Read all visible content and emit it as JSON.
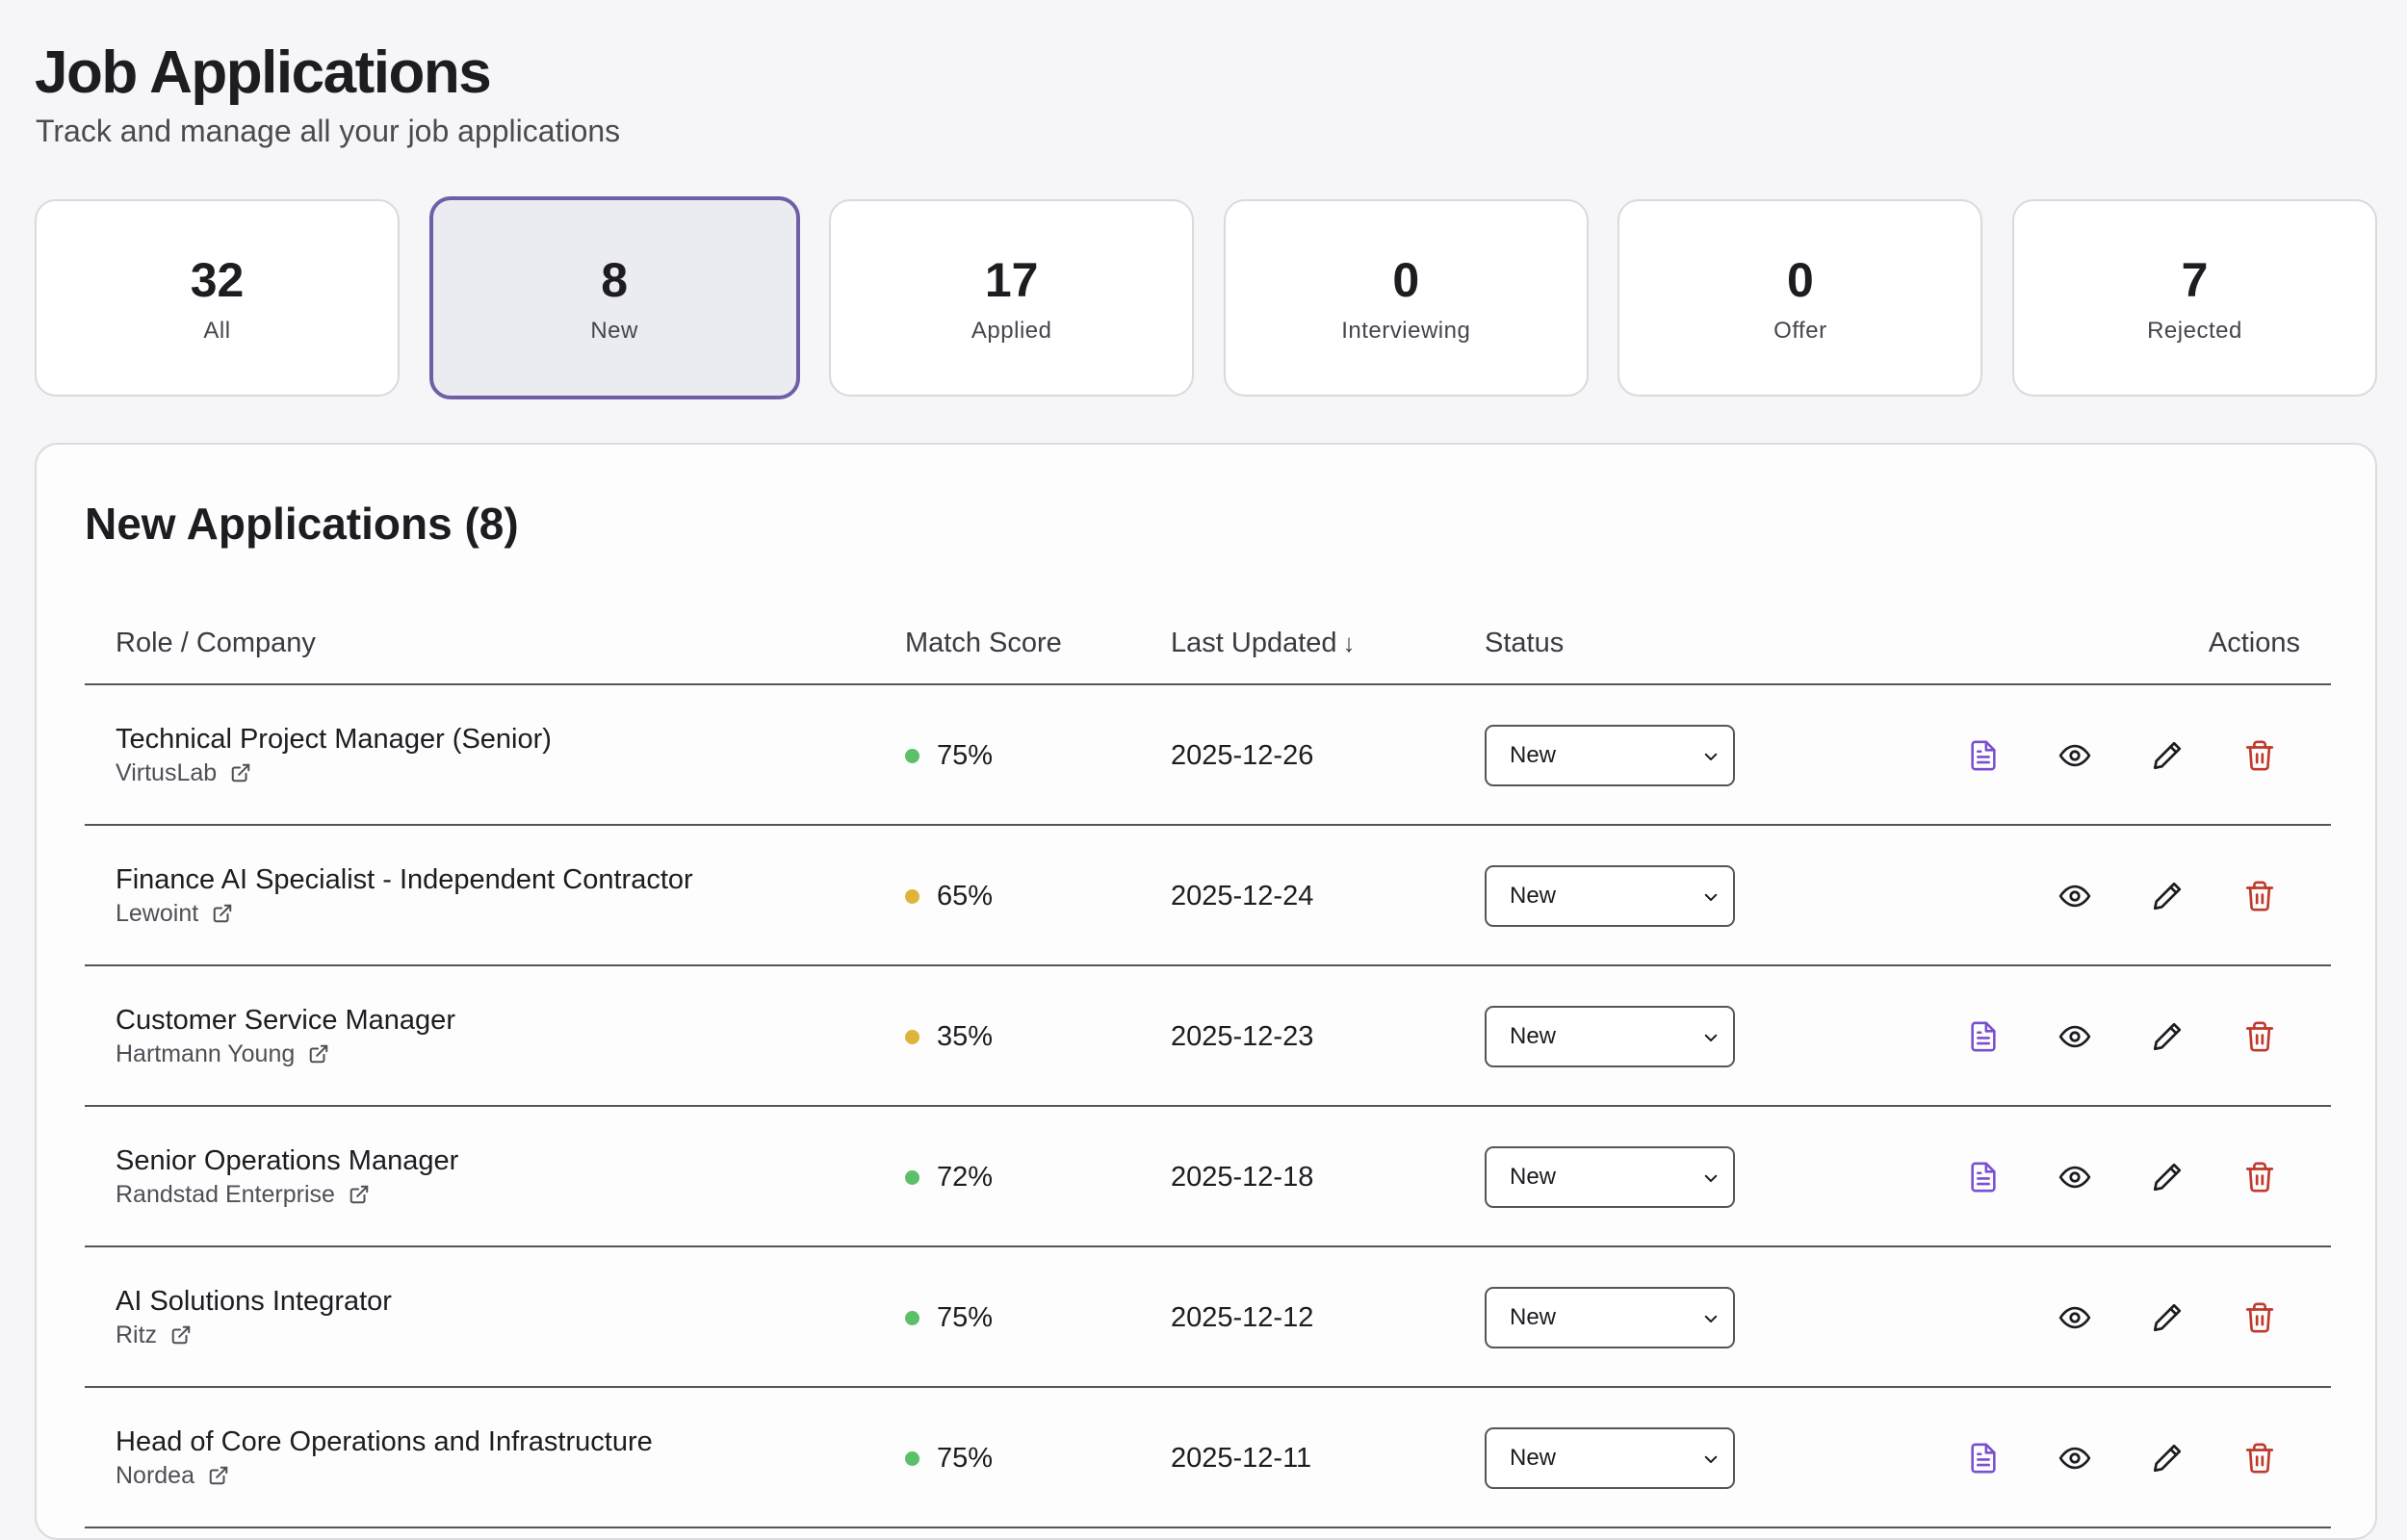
{
  "header": {
    "title": "Job Applications",
    "subtitle": "Track and manage all your job applications"
  },
  "stats": [
    {
      "count": "32",
      "label": "All",
      "active": false
    },
    {
      "count": "8",
      "label": "New",
      "active": true
    },
    {
      "count": "17",
      "label": "Applied",
      "active": false
    },
    {
      "count": "0",
      "label": "Interviewing",
      "active": false
    },
    {
      "count": "0",
      "label": "Offer",
      "active": false
    },
    {
      "count": "7",
      "label": "Rejected",
      "active": false
    }
  ],
  "panel": {
    "title": "New Applications (8)"
  },
  "table": {
    "columns": {
      "role": "Role / Company",
      "match": "Match Score",
      "updated": "Last Updated",
      "status": "Status",
      "actions": "Actions"
    },
    "sort_indicator": "↓",
    "rows": [
      {
        "role": "Technical Project Manager (Senior)",
        "company": "VirtusLab",
        "match": "75%",
        "match_color": "#5cbf6a",
        "updated": "2025-12-26",
        "status": "New",
        "has_document": true
      },
      {
        "role": "Finance AI Specialist - Independent Contractor",
        "company": "Lewoint",
        "match": "65%",
        "match_color": "#e0b33a",
        "updated": "2025-12-24",
        "status": "New",
        "has_document": false
      },
      {
        "role": "Customer Service Manager",
        "company": "Hartmann Young",
        "match": "35%",
        "match_color": "#e0b33a",
        "updated": "2025-12-23",
        "status": "New",
        "has_document": true
      },
      {
        "role": "Senior Operations Manager",
        "company": "Randstad Enterprise",
        "match": "72%",
        "match_color": "#5cbf6a",
        "updated": "2025-12-18",
        "status": "New",
        "has_document": true
      },
      {
        "role": "AI Solutions Integrator",
        "company": "Ritz",
        "match": "75%",
        "match_color": "#5cbf6a",
        "updated": "2025-12-12",
        "status": "New",
        "has_document": false
      },
      {
        "role": "Head of Core Operations and Infrastructure",
        "company": "Nordea",
        "match": "75%",
        "match_color": "#5cbf6a",
        "updated": "2025-12-11",
        "status": "New",
        "has_document": true
      }
    ]
  },
  "icons": {
    "document": "document-icon",
    "view": "eye-icon",
    "edit": "pencil-icon",
    "delete": "trash-icon",
    "external": "external-link-icon",
    "dropdown": "chevron-down-icon"
  },
  "colors": {
    "accent": "#6f5fa6",
    "document_icon": "#7a4fd0",
    "delete_icon": "#c0392b",
    "high_match": "#5cbf6a",
    "medium_match": "#e0b33a"
  }
}
